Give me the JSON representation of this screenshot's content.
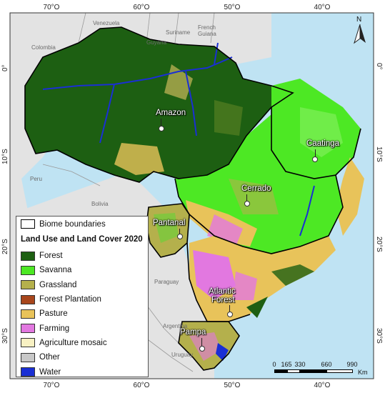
{
  "map": {
    "colors": {
      "ocean": "#bfe3f3",
      "other_land": "#e3e3e3",
      "forest": "#1d5f12",
      "savanna": "#4de824",
      "grassland": "#b4b04c",
      "forest_plantation": "#a8461c",
      "pasture": "#e8c35a",
      "farming": "#e278e0",
      "agriculture_mosaic": "#f8f1c3",
      "other": "#c8c8c8",
      "water": "#1a2fd4"
    },
    "axes": {
      "top": [
        "70°O",
        "60°O",
        "50°O",
        "40°O"
      ],
      "bottom": [
        "70°O",
        "60°O",
        "50°O",
        "40°O"
      ],
      "left": [
        "0°",
        "10°S",
        "20°S",
        "30°S"
      ],
      "right": [
        "0°",
        "10°S",
        "20°S",
        "30°S"
      ]
    },
    "countries": {
      "venezuela": "Venezuela",
      "colombia": "Colombia",
      "guyana": "Guyana",
      "suriname": "Suriname",
      "french_guiana_1": "French",
      "french_guiana_2": "Guiana",
      "peru": "Peru",
      "bolivia": "Bolivia",
      "paraguay": "Paraguay",
      "argentina": "Argentina",
      "uruguay": "Uruguay"
    },
    "biomes": {
      "amazon": "Amazon",
      "caatinga": "Caatinga",
      "cerrado": "Cerrado",
      "pantanal": "Pantanal",
      "atlantic_forest_1": "Atlantic",
      "atlantic_forest_2": "Forest",
      "pampa": "Pampa"
    },
    "north_arrow": "N",
    "scale": {
      "labels": [
        "0",
        "165",
        "330",
        "660",
        "990"
      ],
      "unit": "Km"
    }
  },
  "legend": {
    "boundary_label": "Biome boundaries",
    "title": "Land Use and Land Cover 2020",
    "items": [
      {
        "label": "Forest",
        "color": "#1d5f12"
      },
      {
        "label": "Savanna",
        "color": "#4de824"
      },
      {
        "label": "Grassland",
        "color": "#b4b04c"
      },
      {
        "label": "Forest Plantation",
        "color": "#a8461c"
      },
      {
        "label": "Pasture",
        "color": "#e8c35a"
      },
      {
        "label": "Farming",
        "color": "#e278e0"
      },
      {
        "label": "Agriculture mosaic",
        "color": "#f8f1c3"
      },
      {
        "label": "Other",
        "color": "#c8c8c8"
      },
      {
        "label": "Water",
        "color": "#1a2fd4"
      }
    ]
  }
}
